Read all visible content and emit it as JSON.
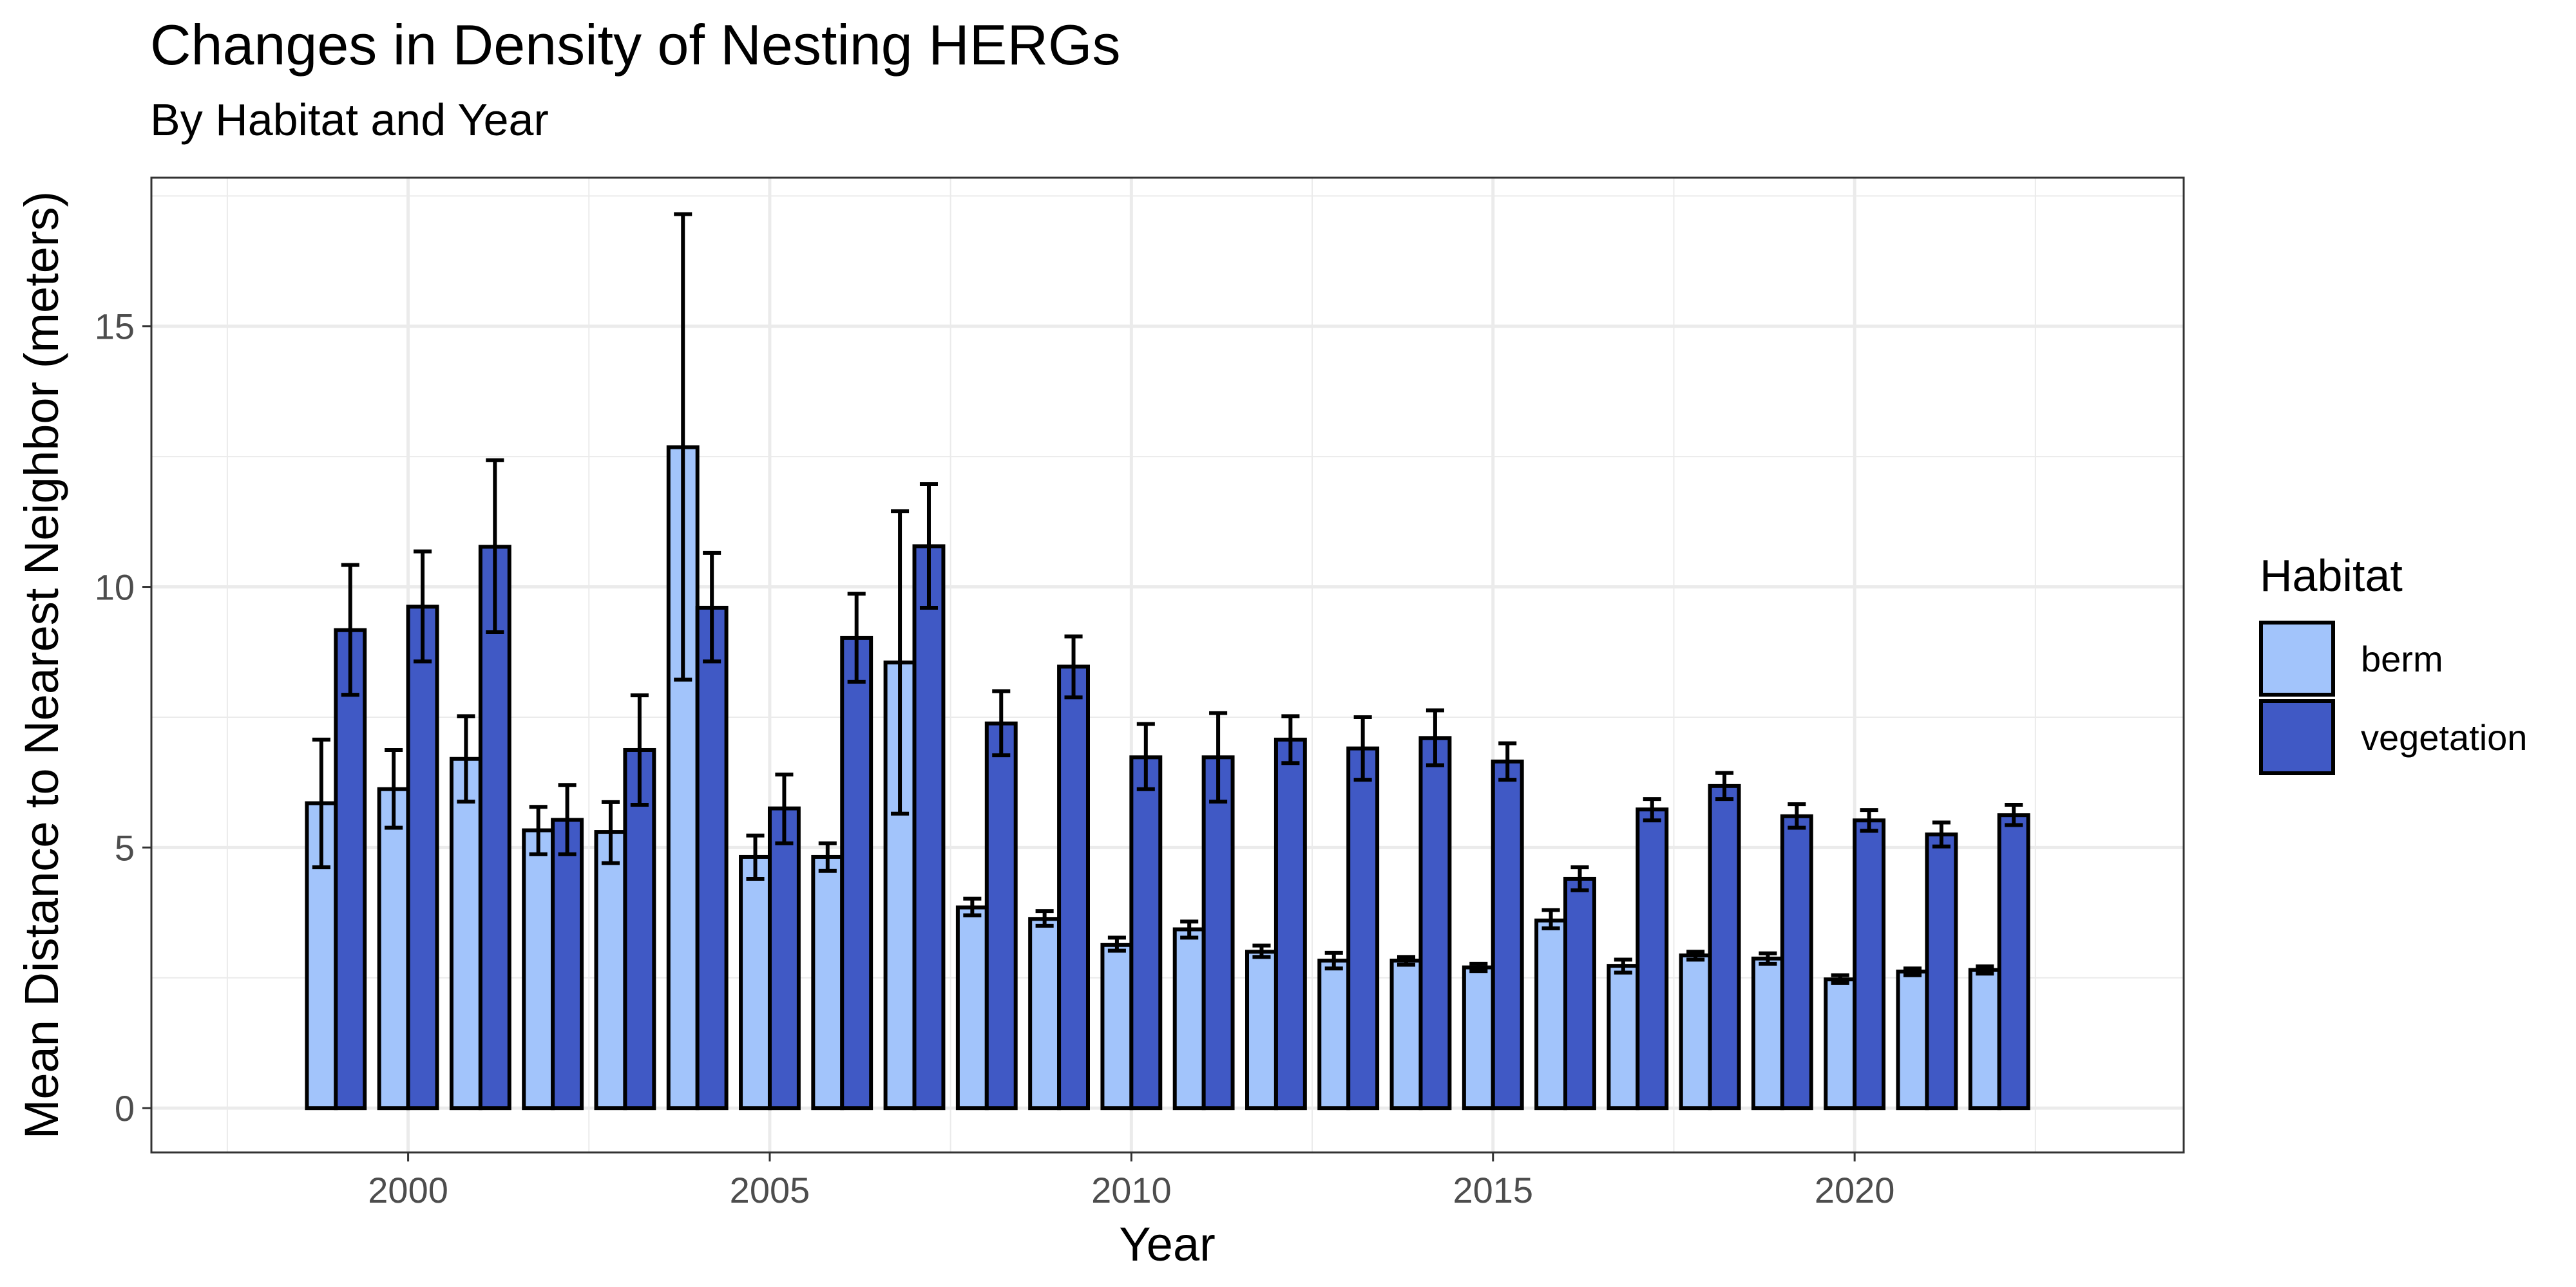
{
  "chart_data": {
    "type": "bar",
    "title": "Changes in Density of Nesting HERGs",
    "subtitle": "By Habitat and Year",
    "xlabel": "Year",
    "ylabel": "Mean Distance to Nearest Neighbor (meters)",
    "x": [
      1999,
      2000,
      2001,
      2002,
      2003,
      2004,
      2005,
      2006,
      2007,
      2008,
      2009,
      2010,
      2011,
      2012,
      2013,
      2014,
      2015,
      2016,
      2017,
      2018,
      2019,
      2020,
      2021,
      2022
    ],
    "xlim": [
      1996.45,
      2024.55
    ],
    "ylim": [
      -0.85,
      17.85
    ],
    "x_ticks": [
      2000,
      2005,
      2010,
      2015,
      2020
    ],
    "y_ticks": [
      0,
      5,
      10,
      15
    ],
    "grid": true,
    "legend": {
      "title": "Habitat",
      "position": "right"
    },
    "series": [
      {
        "name": "berm",
        "color": "#a2c4fb",
        "values": [
          5.85,
          6.12,
          6.7,
          5.33,
          5.3,
          12.68,
          4.82,
          4.82,
          8.55,
          3.85,
          3.63,
          3.13,
          3.43,
          3.0,
          2.83,
          2.83,
          2.7,
          3.6,
          2.73,
          2.93,
          2.87,
          2.47,
          2.62,
          2.65
        ],
        "error_low": [
          4.62,
          5.38,
          5.88,
          4.87,
          4.7,
          8.22,
          4.4,
          4.55,
          5.65,
          3.7,
          3.5,
          3.02,
          3.27,
          2.9,
          2.68,
          2.75,
          2.63,
          3.45,
          2.6,
          2.85,
          2.77,
          2.4,
          2.55,
          2.58
        ],
        "error_high": [
          7.07,
          6.87,
          7.52,
          5.78,
          5.87,
          17.15,
          5.23,
          5.08,
          11.45,
          4.02,
          3.78,
          3.27,
          3.58,
          3.12,
          2.98,
          2.9,
          2.77,
          3.8,
          2.85,
          3.0,
          2.97,
          2.55,
          2.68,
          2.72
        ]
      },
      {
        "name": "vegetation",
        "color": "#4059c5",
        "values": [
          9.17,
          9.62,
          10.77,
          5.53,
          6.87,
          9.6,
          5.75,
          9.02,
          10.78,
          7.38,
          8.47,
          6.73,
          6.73,
          7.07,
          6.9,
          7.1,
          6.65,
          4.4,
          5.73,
          6.18,
          5.6,
          5.52,
          5.25,
          5.62
        ],
        "error_low": [
          7.93,
          8.57,
          9.13,
          4.87,
          5.82,
          8.57,
          5.08,
          8.18,
          9.6,
          6.77,
          7.88,
          6.12,
          5.88,
          6.62,
          6.3,
          6.58,
          6.3,
          4.18,
          5.52,
          5.93,
          5.38,
          5.32,
          5.02,
          5.43
        ],
        "error_high": [
          10.42,
          10.68,
          12.43,
          6.2,
          7.92,
          10.65,
          6.4,
          9.87,
          11.97,
          8.0,
          9.05,
          7.37,
          7.58,
          7.52,
          7.5,
          7.63,
          7.0,
          4.62,
          5.93,
          6.43,
          5.83,
          5.72,
          5.48,
          5.82
        ]
      }
    ]
  }
}
